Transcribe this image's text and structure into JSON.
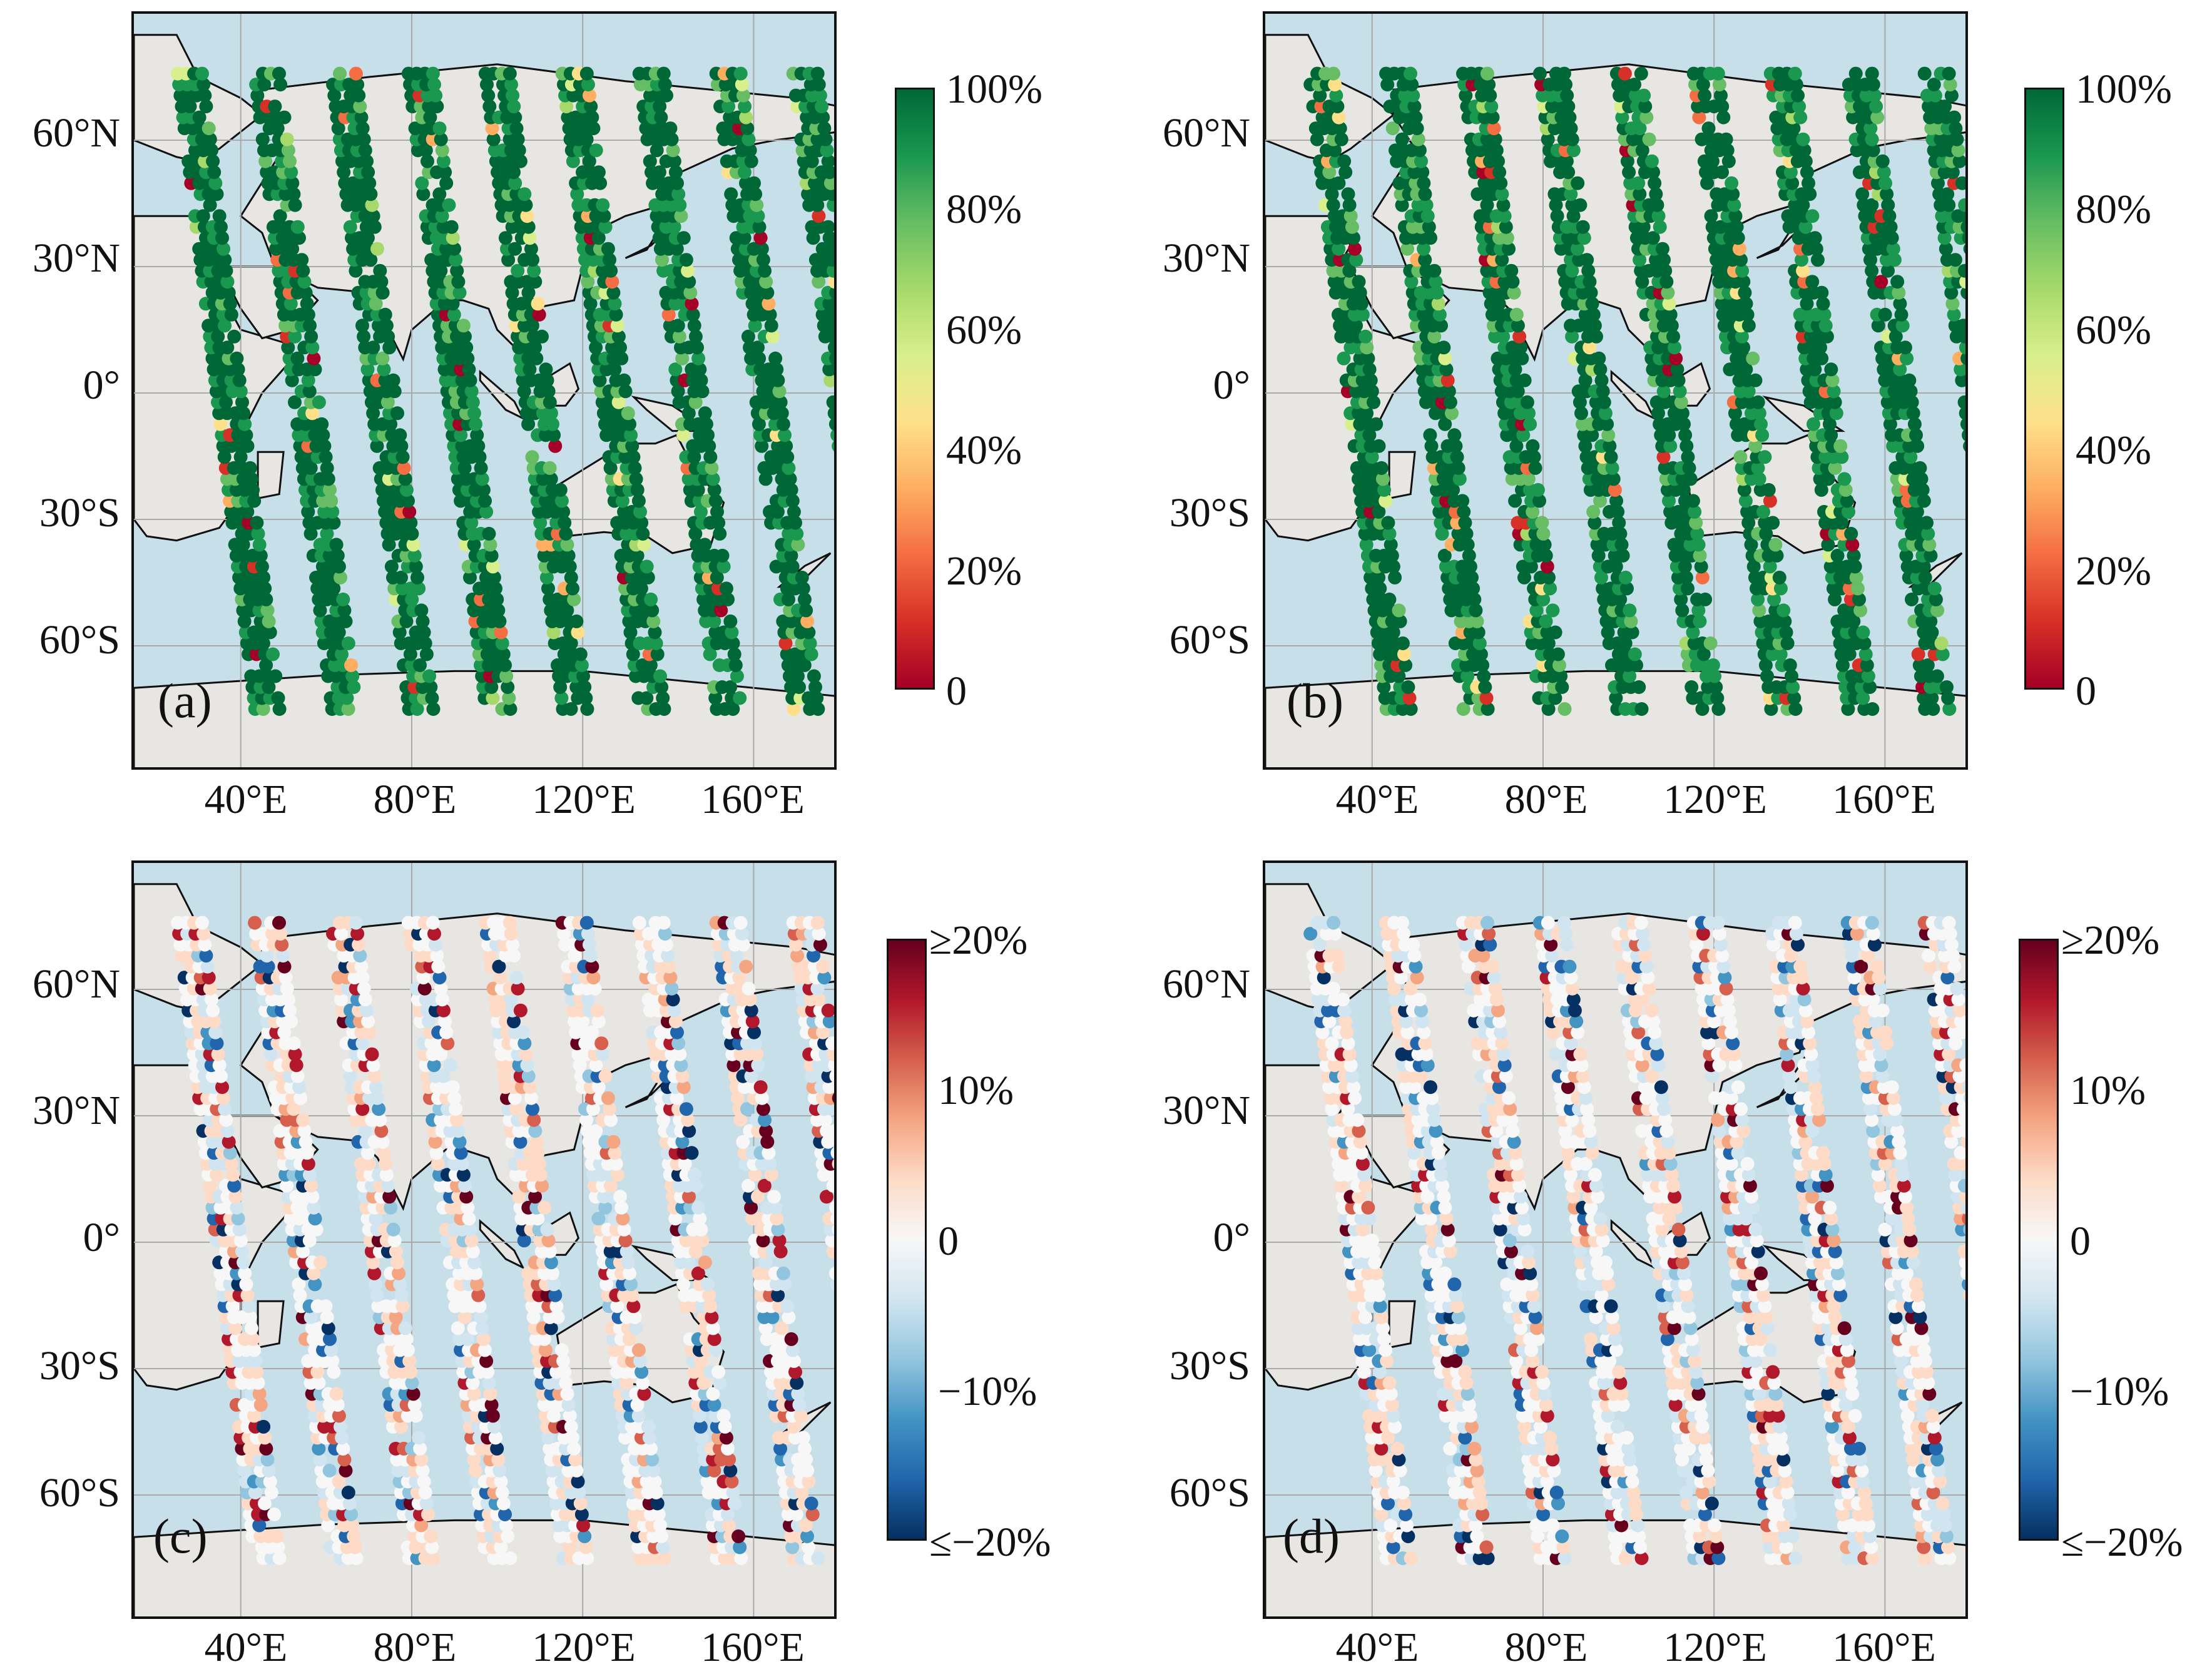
{
  "panels": [
    {
      "id": "a",
      "label": "(a)",
      "colorbar": "cb1"
    },
    {
      "id": "b",
      "label": "(b)",
      "colorbar": "cb1"
    },
    {
      "id": "c",
      "label": "(c)",
      "colorbar": "cb2"
    },
    {
      "id": "d",
      "label": "(d)",
      "colorbar": "cb2"
    }
  ],
  "axes": {
    "lat_labels": [
      "60°N",
      "30°N",
      "0°",
      "30°S",
      "60°S"
    ],
    "lon_labels": [
      "40°E",
      "80°E",
      "120°E",
      "160°E"
    ]
  },
  "colorbars": {
    "cb1": {
      "ticks": [
        "100%",
        "80%",
        "60%",
        "40%",
        "20%",
        "0"
      ],
      "colors": [
        "#a50026",
        "#d73027",
        "#f46d43",
        "#fdae61",
        "#fee08b",
        "#d9ef8b",
        "#a6d96a",
        "#66bd63",
        "#1a9850",
        "#006837"
      ]
    },
    "cb2": {
      "ticks": [
        "≥20%",
        "10%",
        "0",
        "−10%",
        "≤−20%"
      ],
      "colors": [
        "#053061",
        "#2166ac",
        "#4393c3",
        "#92c5de",
        "#d1e5f0",
        "#f7f7f7",
        "#fddbc7",
        "#f4a582",
        "#d6604d",
        "#b2182b",
        "#67001f"
      ]
    }
  },
  "colors": {
    "ocean": "#c7dfe8",
    "land": "#e8e6e3",
    "grid": "#a9a9a9"
  }
}
